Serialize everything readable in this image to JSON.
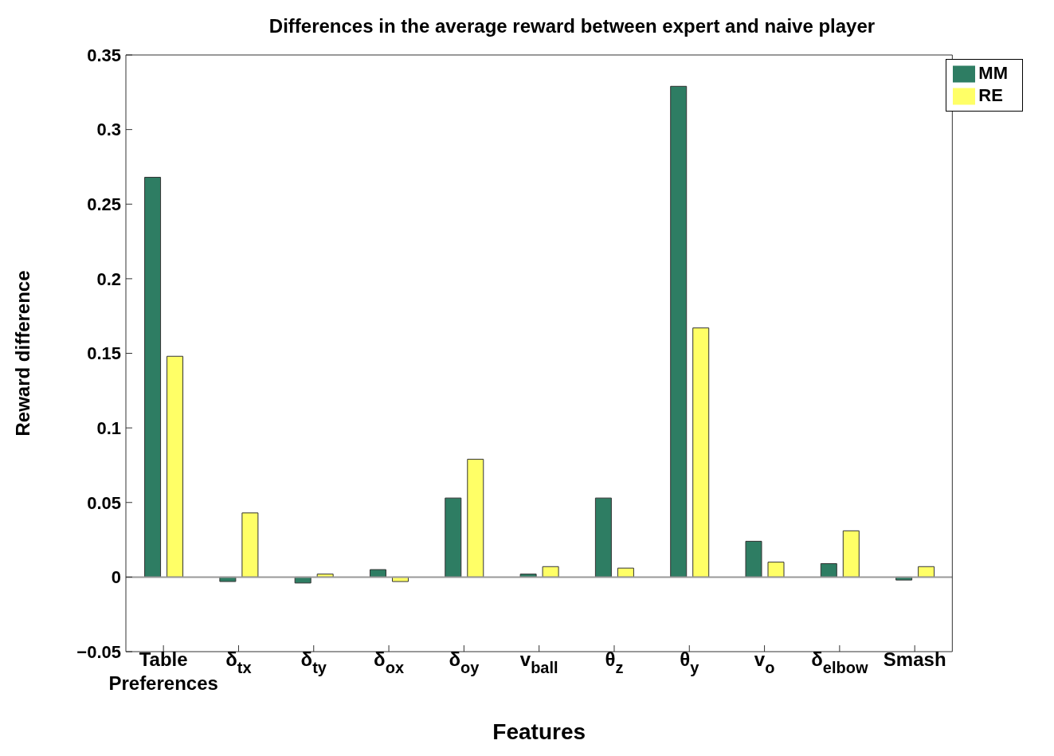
{
  "chart_data": {
    "type": "bar",
    "title": "Differences in the average reward between expert and naive player",
    "xlabel": "Features",
    "ylabel": "Reward difference",
    "categories": [
      "Table Preferences",
      "δ$_{tx}$",
      "δ$_{ty}$",
      "δ$_{ox}$",
      "δ$_{oy}$",
      "v$_{ball}$",
      "θ$_{z}$",
      "θ$_{y}$",
      "v$_{o}$",
      "δ$_{elbow}$",
      "Smash"
    ],
    "series": [
      {
        "name": "MM",
        "color": "#2e7d63",
        "values": [
          0.268,
          -0.003,
          -0.004,
          0.005,
          0.053,
          0.002,
          0.053,
          0.329,
          0.024,
          0.009,
          -0.002
        ]
      },
      {
        "name": "RE",
        "color": "#ffff66",
        "values": [
          0.148,
          0.043,
          0.002,
          -0.003,
          0.079,
          0.007,
          0.006,
          0.167,
          0.01,
          0.031,
          0.007
        ]
      }
    ],
    "ylim": [
      -0.05,
      0.35
    ],
    "yticks": [
      {
        "value": -0.05,
        "label": "−0.05"
      },
      0,
      0.05,
      0.1,
      0.15,
      0.2,
      0.25,
      0.3,
      0.35
    ],
    "ref_lines": [
      {
        "axis": "y",
        "value": 0,
        "color": "#999999"
      }
    ],
    "grid": false,
    "legend": "top right"
  }
}
